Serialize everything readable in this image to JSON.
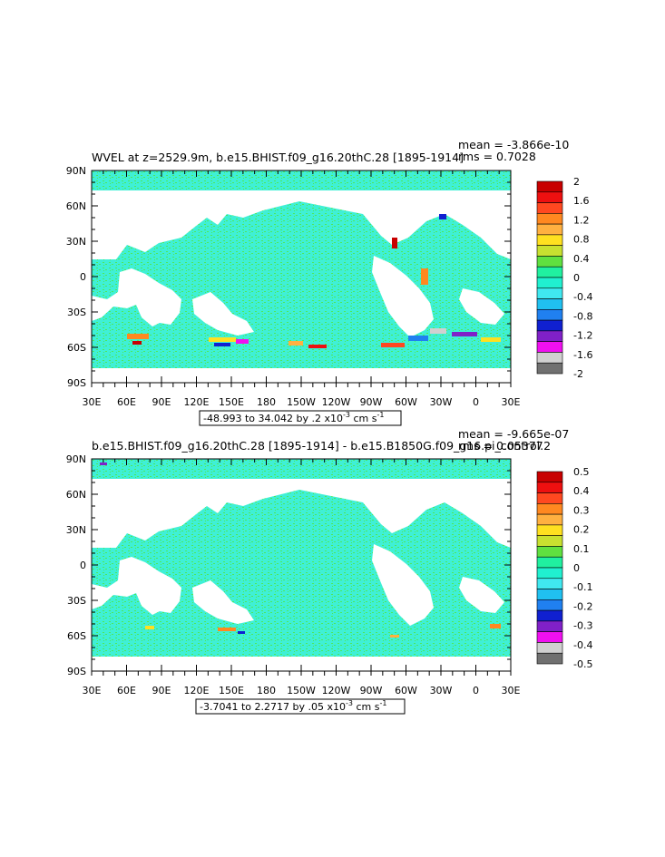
{
  "panels": [
    {
      "title": "WVEL at z=2529.9m, b.e15.BHIST.f09_g16.20thC.28 [1895-1914]",
      "mean_text": "mean = -3.866e-10",
      "rms_text": "rms = 0.7028",
      "range_text": "-48.993 to 34.042 by .2 x10",
      "range_units": " cm s",
      "range_exp": "-3",
      "range_sexp": "-1",
      "colorbar_labels": [
        "2",
        "1.6",
        "1.2",
        "0.8",
        "0.4",
        "0",
        "-0.4",
        "-0.8",
        "-1.2",
        "-1.6",
        "-2"
      ]
    },
    {
      "title": "b.e15.BHIST.f09_g16.20thC.28 [1895-1914] - b.e15.B1850G.f09_g16.pi_control.2",
      "mean_text": "mean = -9.665e-07",
      "rms_text": "rms = 0.05377",
      "range_text": "-3.7041 to 2.2717 by .05 x10",
      "range_units": " cm s",
      "range_exp": "-3",
      "range_sexp": "-1",
      "colorbar_labels": [
        "0.5",
        "0.4",
        "0.3",
        "0.2",
        "0.1",
        "0",
        "-0.1",
        "-0.2",
        "-0.3",
        "-0.4",
        "-0.5"
      ]
    }
  ],
  "axes": {
    "lat_labels": [
      "90N",
      "60N",
      "30N",
      "0",
      "30S",
      "60S",
      "90S"
    ],
    "lon_labels": [
      "30E",
      "60E",
      "90E",
      "120E",
      "150E",
      "180",
      "150W",
      "120W",
      "90W",
      "60W",
      "30W",
      "0",
      "30E"
    ]
  },
  "colors": {
    "ocean": "#3ff0d6",
    "ocean_speckle": "#4ee85a",
    "land": "#ffffff",
    "palette": [
      "#c80000",
      "#ee1010",
      "#ff4820",
      "#ff8820",
      "#ffb040",
      "#ffe020",
      "#c8e030",
      "#60e040",
      "#20f0a0",
      "#40e8f0",
      "#20b8f0",
      "#2080f0",
      "#1020d0",
      "#8020c8",
      "#f010f0",
      "#d0d0d0",
      "#707070"
    ]
  },
  "colorbar_colors": [
    "#c80000",
    "#ee1010",
    "#ff4820",
    "#ff8820",
    "#ffb040",
    "#ffe020",
    "#c8e030",
    "#60e040",
    "#20f0a0",
    "#20f0d0",
    "#40e8f0",
    "#20c0f0",
    "#2080f0",
    "#1020d0",
    "#8020c8",
    "#f010f0",
    "#d0d0d0",
    "#707070"
  ]
}
